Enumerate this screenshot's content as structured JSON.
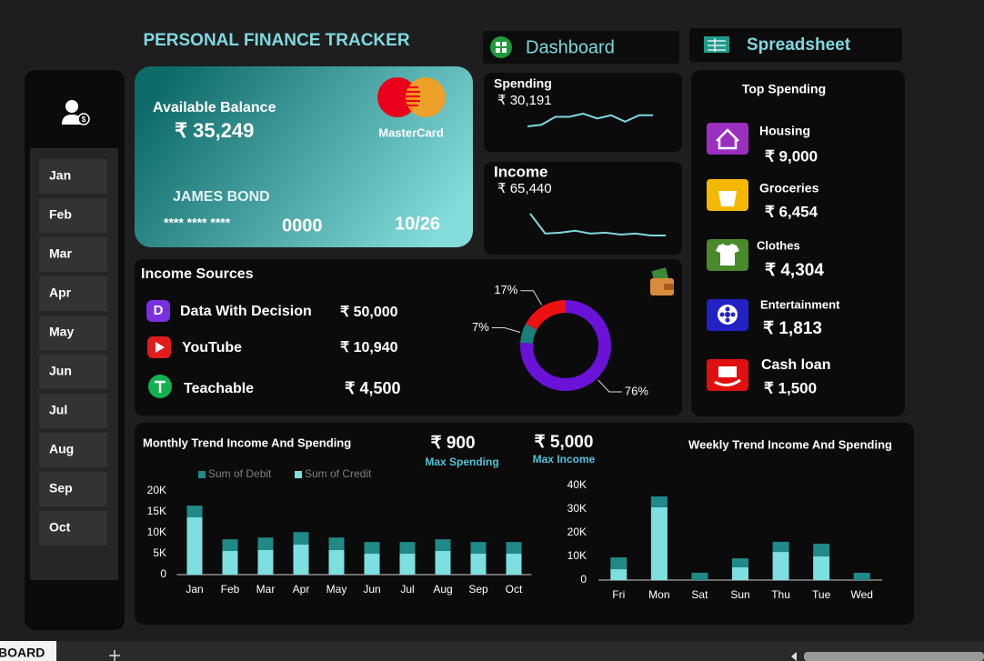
{
  "header": {
    "title": "PERSONAL FINANCE TRACKER"
  },
  "nav": [
    "Dashboard",
    "Spreadsheet"
  ],
  "months": [
    "Jan",
    "Feb",
    "Mar",
    "Apr",
    "May",
    "Jun",
    "Jul",
    "Aug",
    "Sep",
    "Oct"
  ],
  "card": {
    "label": "Available Balance",
    "balance": "₹ 35,249",
    "brand": "MasterCard",
    "holder": "JAMES BOND",
    "masked": "**** **** ****",
    "last4": "0000",
    "expiry": "10/26"
  },
  "income_sources": {
    "title": "Income Sources",
    "rows": [
      {
        "name": "Data With Decision",
        "amount": "₹ 50,000"
      },
      {
        "name": "YouTube",
        "amount": "₹ 10,940"
      },
      {
        "name": "Teachable",
        "amount": "₹ 4,500"
      }
    ]
  },
  "top_spending": {
    "title": "Top Spending",
    "items": [
      {
        "name": "Housing",
        "amount": "₹ 9,000"
      },
      {
        "name": "Groceries",
        "amount": "₹ 6,454"
      },
      {
        "name": "Clothes",
        "amount": "₹ 4,304"
      },
      {
        "name": "Entertainment",
        "amount": "₹ 1,813"
      },
      {
        "name": "Cash loan",
        "amount": "₹ 1,500"
      }
    ]
  },
  "kpis": [
    {
      "value": "₹ 900",
      "label": "Max Spending"
    },
    {
      "value": "₹ 5,000",
      "label": "Max Income"
    }
  ],
  "sheet_tab": "BOARD",
  "chart_data": [
    {
      "type": "line",
      "title": "Spending",
      "total": "₹ 30,191",
      "color": "#7fd8e0",
      "values": [
        2,
        3,
        8,
        8,
        10,
        7,
        9,
        5,
        9,
        9
      ]
    },
    {
      "type": "line",
      "title": "Income",
      "total": "₹ 65,440",
      "color": "#7fd8e0",
      "values": [
        23,
        2,
        3,
        5,
        2,
        3,
        1,
        2,
        0,
        0
      ]
    },
    {
      "type": "pie",
      "donut": true,
      "values": [
        76,
        7,
        17
      ],
      "value_labels": [
        "76%",
        "7%",
        "17%"
      ],
      "colors": [
        "#6a12d8",
        "#1b7f7c",
        "#ee1111"
      ]
    },
    {
      "type": "bar",
      "stacked": true,
      "title": "Monthly Trend Income And Spending",
      "categories": [
        "Jan",
        "Feb",
        "Mar",
        "Apr",
        "May",
        "Jun",
        "Jul",
        "Aug",
        "Sep",
        "Oct"
      ],
      "series": [
        {
          "name": "Sum of Debit",
          "color": "#1f8a87",
          "values": [
            2800,
            2800,
            3000,
            3000,
            3000,
            2800,
            2800,
            2800,
            2800,
            2800
          ]
        },
        {
          "name": "Sum of Credit",
          "color": "#7ddfe0",
          "values": [
            13700,
            5650,
            5870,
            7170,
            5870,
            5000,
            5000,
            5650,
            5000,
            5000
          ]
        }
      ],
      "ylim": [
        0,
        20000
      ],
      "yticks": [
        0,
        {
          "value": 5000,
          "label": "5K"
        },
        {
          "value": 10000,
          "label": "10K"
        },
        {
          "value": 15000,
          "label": "15K"
        },
        {
          "value": 20000,
          "label": "20K"
        }
      ]
    },
    {
      "type": "bar",
      "stacked": true,
      "title": "Weekly Trend Income And Spending",
      "categories": [
        "Fri",
        "Mon",
        "Sat",
        "Sun",
        "Thu",
        "Tue",
        "Wed"
      ],
      "series": [
        {
          "color": "#1f8a87",
          "values": [
            5000,
            4600,
            3100,
            3800,
            4300,
            5400,
            3100
          ]
        },
        {
          "color": "#7ddfe0",
          "values": [
            4600,
            30800,
            0,
            5400,
            11900,
            10000,
            0
          ]
        }
      ],
      "ylim": [
        0,
        40000
      ],
      "yticks": [
        0,
        {
          "value": 10000,
          "label": "10K"
        },
        {
          "value": 20000,
          "label": "20K"
        },
        {
          "value": 30000,
          "label": "30K"
        },
        {
          "value": 40000,
          "label": "40K"
        }
      ]
    }
  ]
}
